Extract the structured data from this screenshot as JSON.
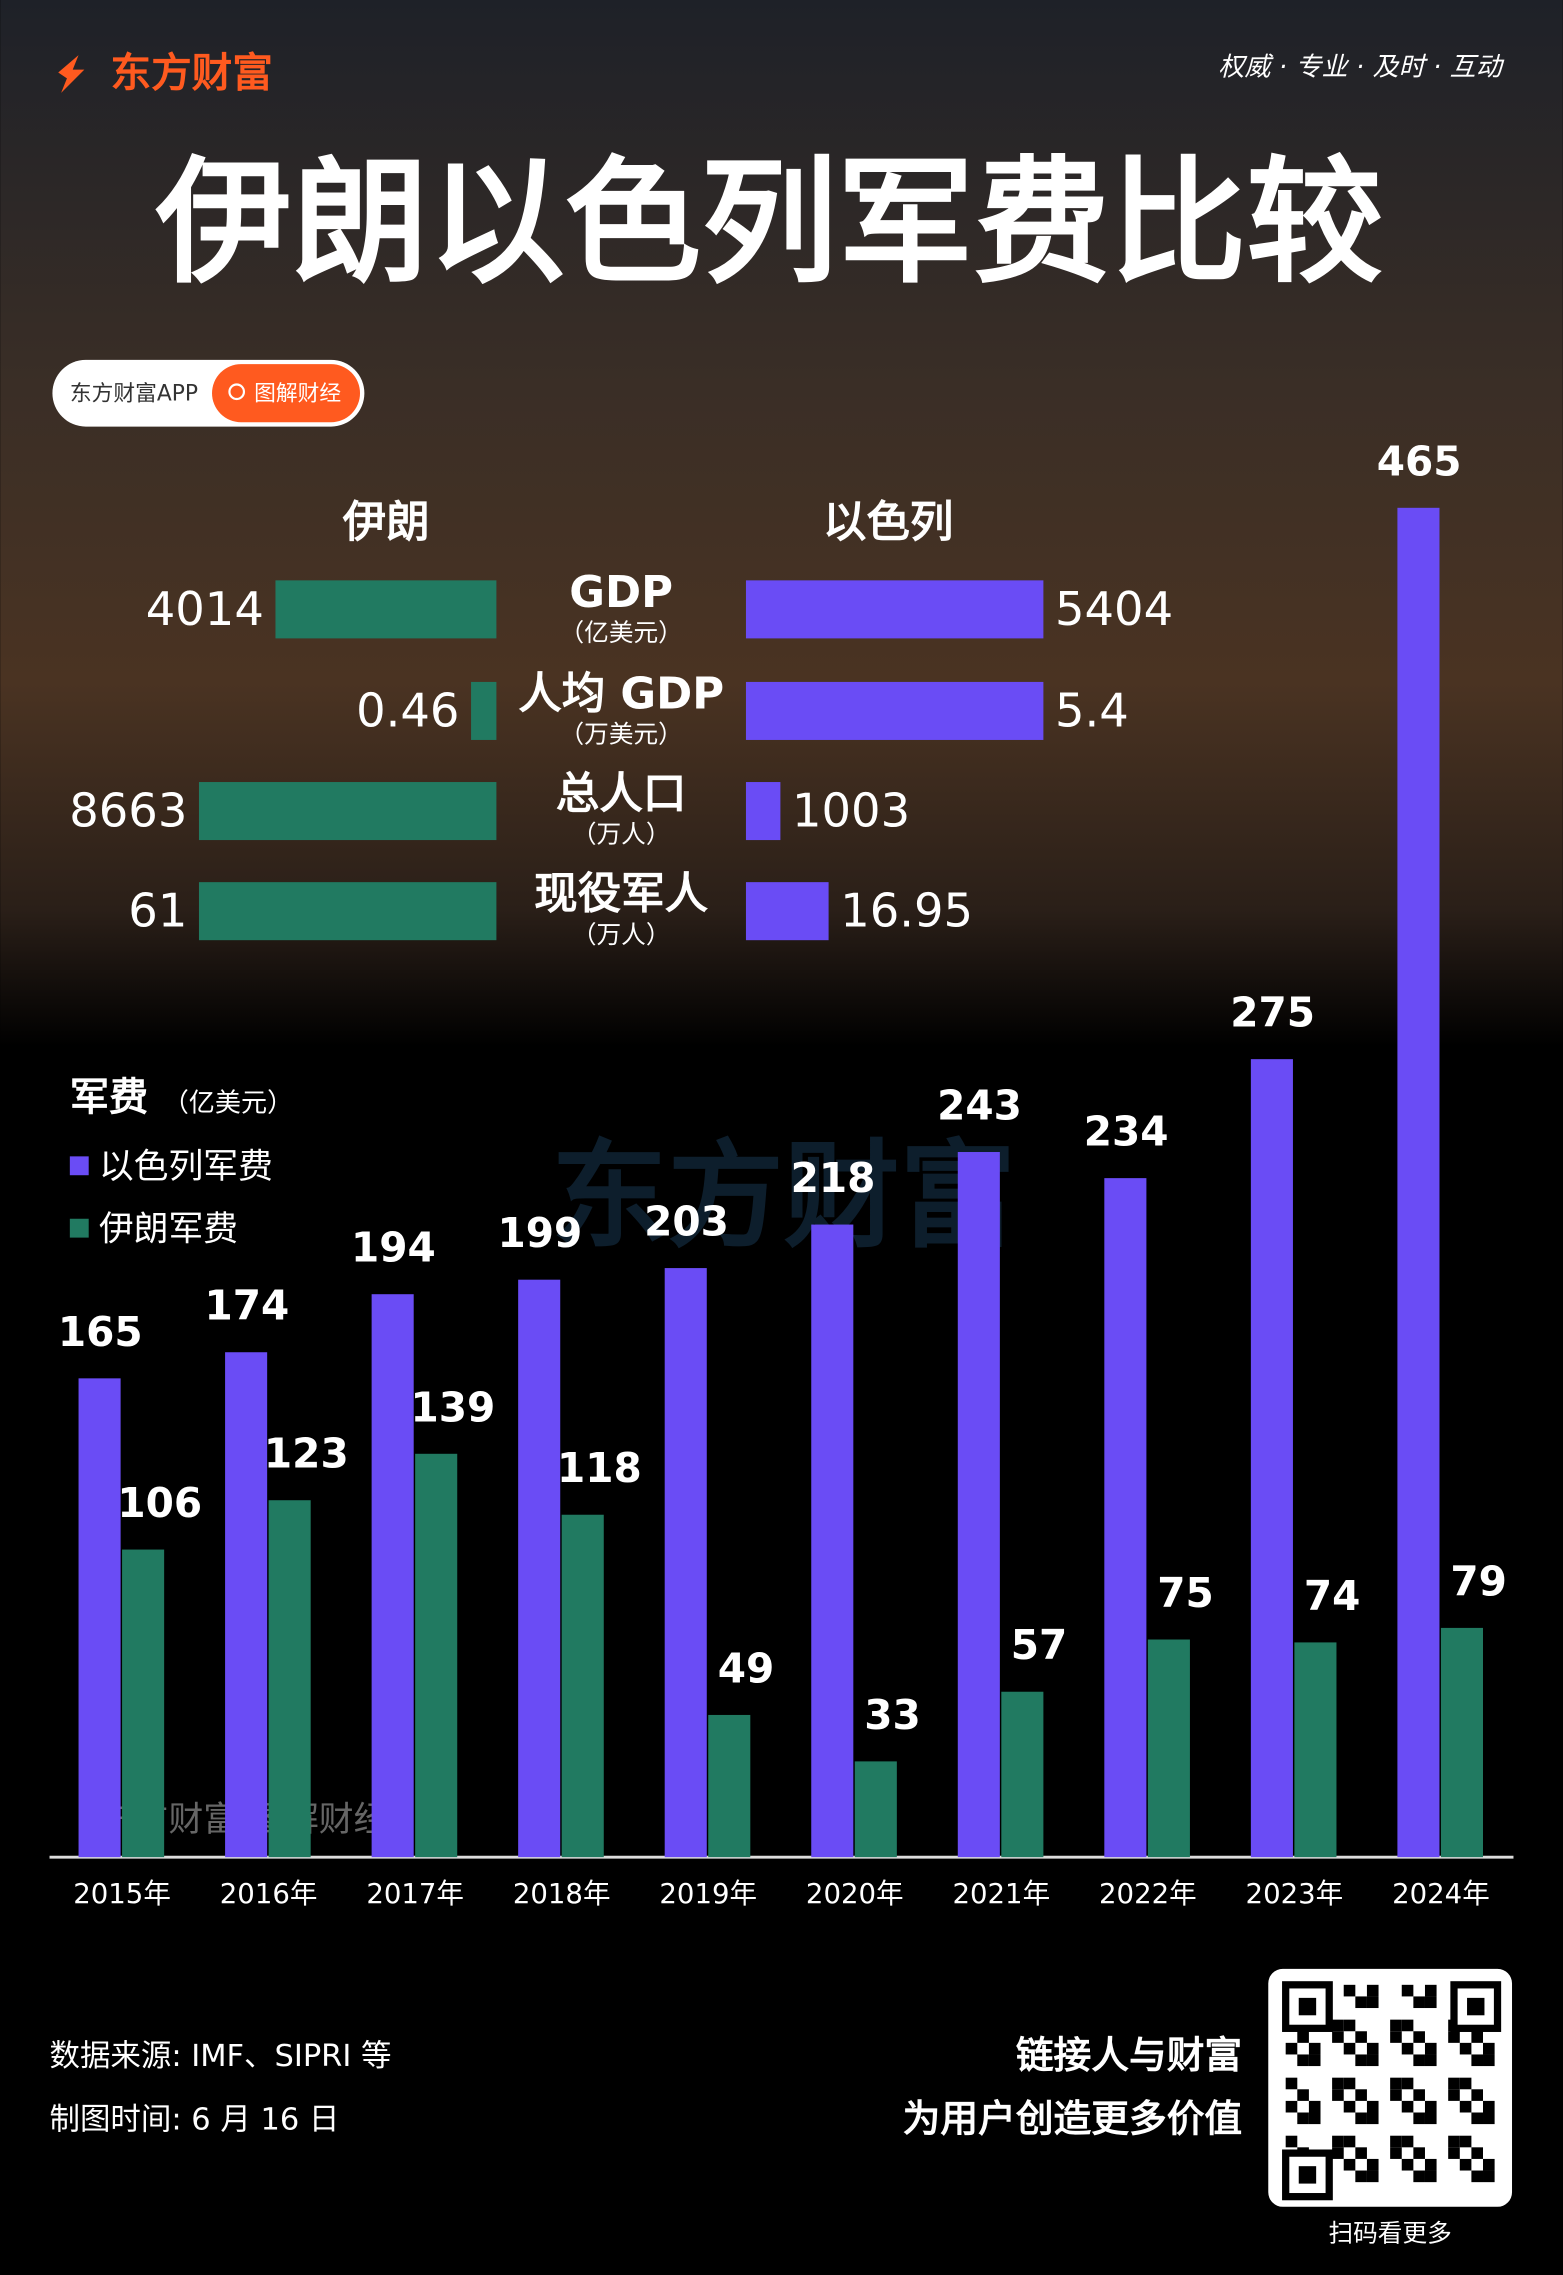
{
  "brand": "东方财富",
  "slogan": "权威 · 专业 · 及时 · 互动",
  "title": "伊朗以色列军费比较",
  "app_label": "东方财富APP",
  "search_label": "图解财经",
  "chart_data": [
    {
      "type": "comparison",
      "categories": [
        "GDP",
        "人均 GDP",
        "总人口",
        "现役军人"
      ],
      "units": [
        "（亿美元）",
        "（万美元）",
        "（万人）",
        "（万人）"
      ],
      "series": [
        {
          "name": "伊朗",
          "color": "#217a61",
          "values": [
            4014,
            0.46,
            8663,
            61
          ]
        },
        {
          "name": "以色列",
          "color": "#6a4cf5",
          "values": [
            5404,
            5.4,
            1003,
            16.95
          ]
        }
      ]
    },
    {
      "type": "bar",
      "title": "军费",
      "unit": "（亿美元）",
      "categories": [
        "2015年",
        "2016年",
        "2017年",
        "2018年",
        "2019年",
        "2020年",
        "2021年",
        "2022年",
        "2023年",
        "2024年"
      ],
      "series": [
        {
          "name": "以色列军费",
          "color": "#6a4cf5",
          "values": [
            165,
            174,
            194,
            199,
            203,
            218,
            243,
            234,
            275,
            465
          ]
        },
        {
          "name": "伊朗军费",
          "color": "#217a61",
          "values": [
            106,
            123,
            139,
            118,
            49,
            33,
            57,
            75,
            74,
            79
          ]
        }
      ],
      "ylim": [
        0,
        465
      ]
    }
  ],
  "watermark": "东方财富",
  "watermark2": "东方财富 图解财经",
  "footer": {
    "source": "数据来源: IMF、SIPRI 等",
    "date": "制图时间: 6 月 16 日",
    "tagline1": "链接人与财富",
    "tagline2": "为用户创造更多价值",
    "qr_caption": "扫码看更多"
  }
}
